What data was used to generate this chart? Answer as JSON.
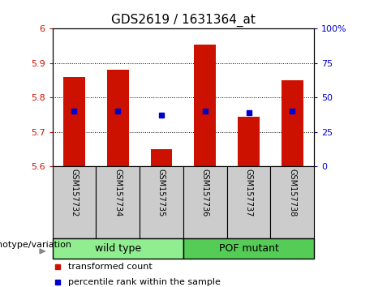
{
  "title": "GDS2619 / 1631364_at",
  "samples": [
    "GSM157732",
    "GSM157734",
    "GSM157735",
    "GSM157736",
    "GSM157737",
    "GSM157738"
  ],
  "bar_tops": [
    5.86,
    5.88,
    5.65,
    5.955,
    5.745,
    5.85
  ],
  "blue_dots": [
    5.762,
    5.762,
    5.748,
    5.762,
    5.756,
    5.762
  ],
  "ymin": 5.6,
  "ymax": 6.0,
  "yticks_left": [
    5.6,
    5.7,
    5.8,
    5.9,
    6.0
  ],
  "ytick_labels_left": [
    "5.6",
    "5.7",
    "5.8",
    "5.9",
    "6"
  ],
  "right_yticks": [
    0,
    25,
    50,
    75,
    100
  ],
  "right_ytick_labels": [
    "0",
    "25",
    "50",
    "75",
    "100%"
  ],
  "bar_color": "#cc1100",
  "dot_color": "#0000cc",
  "bar_width": 0.5,
  "group_info": [
    {
      "start": 0,
      "end": 3,
      "label": "wild type",
      "color": "#90ee90"
    },
    {
      "start": 3,
      "end": 6,
      "label": "POF mutant",
      "color": "#55cc55"
    }
  ],
  "geno_label": "genotype/variation",
  "legend_items": [
    "transformed count",
    "percentile rank within the sample"
  ],
  "legend_colors": [
    "#cc1100",
    "#0000cc"
  ],
  "tick_area_color": "#cccccc",
  "title_fontsize": 11,
  "tick_fontsize": 8,
  "sample_fontsize": 7,
  "group_fontsize": 9,
  "legend_fontsize": 8,
  "geno_fontsize": 8
}
